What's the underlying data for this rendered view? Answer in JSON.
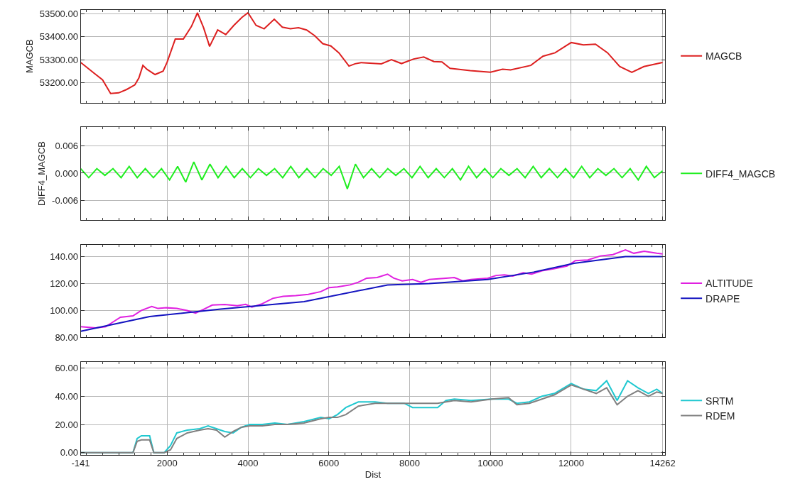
{
  "chart_data": [
    {
      "type": "line",
      "ylabel": "MAGCB",
      "xlim": [
        -141,
        14330
      ],
      "xticks": [
        -141,
        2000,
        4000,
        6000,
        8000,
        10000,
        12000,
        14262
      ],
      "ylim": [
        53112,
        53518
      ],
      "yticks": [
        {
          "value": 53200,
          "label": "53200.00"
        },
        {
          "value": 53300,
          "label": "53300.00"
        },
        {
          "value": 53400,
          "label": "53400.00"
        },
        {
          "value": 53500,
          "label": "53500.00"
        }
      ],
      "grid": true,
      "legend": "right",
      "tick_labels": "y",
      "marker": "none",
      "line_style": "solid",
      "series": [
        {
          "name": "MAGCB",
          "color": "#dd2020",
          "x": [
            -141,
            200,
            400,
            600,
            800,
            1000,
            1200,
            1300,
            1400,
            1500,
            1700,
            1900,
            2000,
            2200,
            2400,
            2600,
            2750,
            2900,
            3050,
            3250,
            3450,
            3650,
            3850,
            4000,
            4200,
            4400,
            4650,
            4850,
            5050,
            5250,
            5450,
            5650,
            5850,
            6050,
            6250,
            6500,
            6650,
            6800,
            7300,
            7550,
            7800,
            8100,
            8350,
            8600,
            8800,
            9000,
            9500,
            10000,
            10300,
            10500,
            11000,
            11300,
            11600,
            12000,
            12300,
            12600,
            12900,
            13200,
            13500,
            13800,
            14262
          ],
          "values": [
            53288,
            53240,
            53212,
            53152,
            53155,
            53170,
            53190,
            53220,
            53275,
            53258,
            53235,
            53250,
            53290,
            53390,
            53390,
            53445,
            53505,
            53440,
            53358,
            53430,
            53410,
            53450,
            53485,
            53505,
            53450,
            53435,
            53477,
            53442,
            53435,
            53440,
            53430,
            53405,
            53370,
            53360,
            53330,
            53272,
            53282,
            53287,
            53282,
            53300,
            53283,
            53303,
            53312,
            53292,
            53290,
            53262,
            53252,
            53245,
            53258,
            53255,
            53275,
            53315,
            53330,
            53375,
            53365,
            53368,
            53330,
            53270,
            53245,
            53270,
            53288
          ]
        }
      ]
    },
    {
      "type": "line",
      "ylabel": "DIFF4_MAGCB",
      "xlim": [
        -141,
        14330
      ],
      "xticks": [
        -141,
        2000,
        4000,
        6000,
        8000,
        10000,
        12000,
        14262
      ],
      "ylim": [
        -0.0104,
        0.0102
      ],
      "yticks": [
        {
          "value": -0.006,
          "label": "-0.006"
        },
        {
          "value": 0,
          "label": "0.000"
        },
        {
          "value": 0.006,
          "label": "0.006"
        }
      ],
      "grid": true,
      "legend": "right",
      "tick_labels": "y",
      "marker": "none",
      "line_style": "solid",
      "series": [
        {
          "name": "DIFF4_MAGCB",
          "color": "#20ee20",
          "x": [
            -141,
            59,
            259,
            459,
            659,
            859,
            1059,
            1259,
            1459,
            1659,
            1859,
            2059,
            2259,
            2459,
            2659,
            2859,
            3059,
            3259,
            3459,
            3659,
            3859,
            4059,
            4259,
            4459,
            4659,
            4859,
            5059,
            5259,
            5459,
            5659,
            5859,
            6059,
            6259,
            6459,
            6659,
            6859,
            7059,
            7259,
            7459,
            7659,
            7859,
            8059,
            8259,
            8459,
            8659,
            8859,
            9059,
            9259,
            9459,
            9659,
            9859,
            10059,
            10259,
            10459,
            10659,
            10859,
            11059,
            11259,
            11459,
            11659,
            11859,
            12059,
            12259,
            12459,
            12659,
            12859,
            13059,
            13259,
            13459,
            13659,
            13859,
            14059,
            14259
          ],
          "values": [
            0.001,
            -0.001,
            0.001,
            -0.0005,
            0.001,
            -0.001,
            0.0015,
            -0.001,
            0.001,
            -0.001,
            0.001,
            -0.0015,
            0.0015,
            -0.002,
            0.0025,
            -0.0015,
            0.002,
            -0.001,
            0.0015,
            -0.001,
            0.001,
            -0.001,
            0.001,
            -0.0005,
            0.001,
            -0.001,
            0.0015,
            -0.001,
            0.001,
            -0.001,
            0.001,
            -0.0005,
            0.0015,
            -0.0035,
            0.002,
            -0.001,
            0.001,
            -0.001,
            0.001,
            -0.0005,
            0.001,
            -0.001,
            0.0015,
            -0.001,
            0.001,
            -0.001,
            0.001,
            -0.0015,
            0.0015,
            -0.001,
            0.001,
            -0.001,
            0.001,
            -0.0005,
            0.001,
            -0.001,
            0.0015,
            -0.001,
            0.001,
            -0.001,
            0.001,
            -0.001,
            0.0015,
            -0.001,
            0.001,
            -0.0005,
            0.001,
            -0.001,
            0.001,
            -0.0015,
            0.0015,
            -0.001,
            0.0005
          ]
        }
      ]
    },
    {
      "type": "line",
      "xlim": [
        -141,
        14330
      ],
      "xticks": [
        -141,
        2000,
        4000,
        6000,
        8000,
        10000,
        12000,
        14262
      ],
      "ylim": [
        80,
        149
      ],
      "yticks": [
        {
          "value": 80,
          "label": "80.00"
        },
        {
          "value": 100,
          "label": "100.00"
        },
        {
          "value": 120,
          "label": "120.00"
        },
        {
          "value": 140,
          "label": "140.00"
        }
      ],
      "grid": true,
      "legend": "right",
      "tick_labels": "y",
      "marker": "none",
      "line_style": "solid",
      "series": [
        {
          "name": "ALTITUDE",
          "color": "#e020e0",
          "x": [
            -141,
            223,
            481,
            636,
            843,
            1153,
            1360,
            1618,
            1773,
            1979,
            2238,
            2496,
            2702,
            2909,
            3116,
            3426,
            3735,
            3942,
            4097,
            4355,
            4614,
            4872,
            5182,
            5492,
            5802,
            6008,
            6215,
            6525,
            6731,
            6938,
            7196,
            7454,
            7609,
            7816,
            8074,
            8280,
            8487,
            8900,
            9107,
            9314,
            9520,
            9934,
            10140,
            10347,
            10553,
            10811,
            11018,
            11276,
            11586,
            11896,
            12103,
            12413,
            12723,
            13032,
            13342,
            13549,
            13807,
            14117,
            14262
          ],
          "values": [
            88,
            87,
            88,
            91,
            95,
            96,
            100,
            103,
            101.5,
            102,
            101.5,
            100,
            98,
            101,
            104,
            104.5,
            103.5,
            104.5,
            102.5,
            105,
            109,
            110.5,
            111,
            112,
            114,
            117,
            117.5,
            119,
            121,
            124,
            124.5,
            127,
            124,
            122,
            123,
            121,
            123,
            124,
            124.5,
            122,
            123,
            124,
            126,
            126.5,
            125.5,
            128,
            127,
            129.5,
            131,
            133,
            137,
            137.5,
            140.5,
            141.5,
            145,
            142.5,
            144,
            142.5,
            142
          ]
        },
        {
          "name": "DRAPE",
          "color": "#1414c0",
          "x": [
            -141,
            1566,
            3322,
            5388,
            7454,
            8487,
            9934,
            11070,
            12070,
            13342,
            14262
          ],
          "values": [
            84.5,
            95.5,
            101,
            106.5,
            119,
            120,
            123,
            128.5,
            135,
            140,
            140
          ]
        }
      ]
    },
    {
      "type": "line",
      "xlabel": "Dist",
      "xlim": [
        -141,
        14330
      ],
      "xticks": [
        -141,
        2000,
        4000,
        6000,
        8000,
        10000,
        12000,
        14262
      ],
      "ylim": [
        -1.5,
        64.4
      ],
      "yticks": [
        {
          "value": 0,
          "label": "0.00"
        },
        {
          "value": 20,
          "label": "20.00"
        },
        {
          "value": 40,
          "label": "40.00"
        },
        {
          "value": 60,
          "label": "60.00"
        }
      ],
      "grid": true,
      "legend": "right",
      "marker": "none",
      "line_style": "solid",
      "series": [
        {
          "name": "SRTM",
          "color": "#20c8d0",
          "x": [
            -141,
            1153,
            1256,
            1360,
            1566,
            1670,
            1928,
            2083,
            2238,
            2496,
            2806,
            3013,
            3219,
            3426,
            3632,
            3839,
            4045,
            4355,
            4665,
            4975,
            5388,
            5802,
            6008,
            6215,
            6422,
            6731,
            7145,
            7454,
            7867,
            8074,
            8693,
            8900,
            9107,
            9520,
            10037,
            10450,
            10656,
            10966,
            11276,
            11586,
            12000,
            12310,
            12620,
            12878,
            13136,
            13394,
            13652,
            13910,
            14117,
            14262
          ],
          "values": [
            0,
            0,
            10,
            12,
            12,
            0,
            0,
            5,
            14,
            16,
            17,
            19,
            17,
            15,
            14,
            18,
            20,
            20,
            21,
            20,
            22,
            25,
            24,
            27,
            32,
            36,
            36,
            35,
            35,
            32,
            32,
            37,
            38,
            37,
            38,
            38,
            35,
            36,
            40,
            42,
            49,
            45,
            44,
            51,
            37,
            51,
            46,
            42,
            45,
            42
          ]
        },
        {
          "name": "RDEM",
          "color": "#808080",
          "x": [
            -141,
            1153,
            1256,
            1360,
            1566,
            1670,
            1928,
            2083,
            2238,
            2496,
            2806,
            3013,
            3219,
            3426,
            3632,
            3839,
            4045,
            4355,
            4665,
            4975,
            5388,
            5802,
            6008,
            6215,
            6422,
            6731,
            7145,
            7454,
            7867,
            8074,
            8693,
            8900,
            9107,
            9520,
            10037,
            10450,
            10656,
            10966,
            11276,
            11586,
            12000,
            12310,
            12620,
            12878,
            13136,
            13394,
            13652,
            13910,
            14117,
            14262
          ],
          "values": [
            0,
            0,
            8,
            9,
            9,
            0,
            0,
            2,
            10,
            14,
            16,
            17,
            16,
            11,
            15,
            18,
            19,
            19,
            20,
            20,
            21,
            24,
            25,
            25,
            27,
            33,
            35,
            35,
            35,
            35,
            35,
            36,
            37,
            36,
            38,
            39,
            34,
            35,
            38,
            41,
            48,
            45,
            42,
            46,
            34,
            40,
            44,
            40,
            43,
            42
          ]
        }
      ]
    }
  ]
}
